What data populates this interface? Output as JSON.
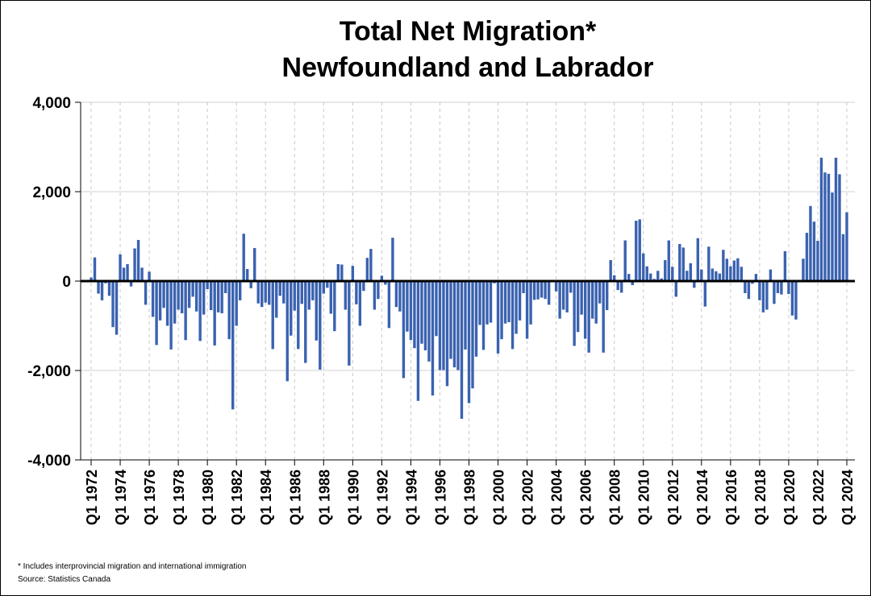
{
  "chart_data": {
    "type": "bar",
    "title": "Total Net Migration*",
    "subtitle": "Newfoundland and Labrador",
    "footnote": "* Includes interprovincial migration and international immigration",
    "source": "Source: Statistics Canada",
    "color": "#3a62b0",
    "grid": true,
    "ylim": [
      -4000,
      4000
    ],
    "yticks": [
      {
        "value": -4000,
        "label": "-4,000"
      },
      {
        "value": -2000,
        "label": "-2,000"
      },
      0,
      {
        "value": 2000,
        "label": "2,000"
      },
      {
        "value": 4000,
        "label": "4,000"
      }
    ],
    "categories": [
      "Q1 1972",
      null,
      null,
      null,
      null,
      null,
      null,
      null,
      "Q1 1974",
      null,
      null,
      null,
      null,
      null,
      null,
      null,
      "Q1 1976",
      null,
      null,
      null,
      null,
      null,
      null,
      null,
      "Q1 1978",
      null,
      null,
      null,
      null,
      null,
      null,
      null,
      "Q1 1980",
      null,
      null,
      null,
      null,
      null,
      null,
      null,
      "Q1 1982",
      null,
      null,
      null,
      null,
      null,
      null,
      null,
      "Q1 1984",
      null,
      null,
      null,
      null,
      null,
      null,
      null,
      "Q1 1986",
      null,
      null,
      null,
      null,
      null,
      null,
      null,
      "Q1 1988",
      null,
      null,
      null,
      null,
      null,
      null,
      null,
      "Q1 1990",
      null,
      null,
      null,
      null,
      null,
      null,
      null,
      "Q1 1992",
      null,
      null,
      null,
      null,
      null,
      null,
      null,
      "Q1 1994",
      null,
      null,
      null,
      null,
      null,
      null,
      null,
      "Q1 1996",
      null,
      null,
      null,
      null,
      null,
      null,
      null,
      "Q1 1998",
      null,
      null,
      null,
      null,
      null,
      null,
      null,
      "Q1 2000",
      null,
      null,
      null,
      null,
      null,
      null,
      null,
      "Q1 2002",
      null,
      null,
      null,
      null,
      null,
      null,
      null,
      "Q1 2004",
      null,
      null,
      null,
      null,
      null,
      null,
      null,
      "Q1 2006",
      null,
      null,
      null,
      null,
      null,
      null,
      null,
      "Q1 2008",
      null,
      null,
      null,
      null,
      null,
      null,
      null,
      "Q1 2010",
      null,
      null,
      null,
      null,
      null,
      null,
      null,
      "Q1 2012",
      null,
      null,
      null,
      null,
      null,
      null,
      null,
      "Q1 2014",
      null,
      null,
      null,
      null,
      null,
      null,
      null,
      "Q1 2016",
      null,
      null,
      null,
      null,
      null,
      null,
      null,
      "Q1 2018",
      null,
      null,
      null,
      null,
      null,
      null,
      null,
      "Q1 2020",
      null,
      null,
      null,
      null,
      null,
      null,
      null,
      "Q1 2022",
      null,
      null,
      null,
      null,
      null,
      null,
      null,
      "Q1 2024"
    ],
    "values": [
      80,
      530,
      -280,
      -430,
      -50,
      -330,
      -1030,
      -1200,
      600,
      300,
      380,
      -120,
      730,
      920,
      300,
      -530,
      210,
      -800,
      -1430,
      -880,
      -600,
      -1000,
      -1530,
      -950,
      -640,
      -720,
      -1320,
      -600,
      -350,
      -680,
      -1340,
      -750,
      -180,
      -650,
      -1440,
      -700,
      -720,
      -270,
      -1300,
      -2870,
      -1000,
      -430,
      1060,
      270,
      -160,
      740,
      -500,
      -580,
      -480,
      -530,
      -1520,
      -820,
      -330,
      -500,
      -2240,
      -1220,
      -660,
      -1520,
      -510,
      -1830,
      -640,
      -430,
      -1330,
      -1980,
      -280,
      -150,
      -730,
      -1120,
      380,
      370,
      -640,
      -1890,
      340,
      -520,
      -1000,
      -220,
      520,
      720,
      -640,
      -400,
      120,
      -80,
      -1050,
      970,
      -580,
      -680,
      -2170,
      -1130,
      -1320,
      -1500,
      -2680,
      -1400,
      -1550,
      -1800,
      -2560,
      -1230,
      -1990,
      -1990,
      -2350,
      -1740,
      -1930,
      -1990,
      -3080,
      -1530,
      -2730,
      -2400,
      -1690,
      -980,
      -1540,
      -970,
      -930,
      -50,
      -1620,
      -1300,
      -950,
      -920,
      -1520,
      -1180,
      -880,
      -270,
      -1290,
      -970,
      -420,
      -410,
      -370,
      -400,
      -530,
      -20,
      -230,
      -840,
      -640,
      -700,
      -260,
      -1450,
      -1140,
      -750,
      -1290,
      -1600,
      -840,
      -950,
      -500,
      -1600,
      -650,
      470,
      130,
      -200,
      -260,
      910,
      160,
      -90,
      1350,
      1380,
      620,
      330,
      170,
      50,
      230,
      60,
      470,
      910,
      320,
      -350,
      830,
      750,
      230,
      400,
      -150,
      960,
      260,
      -570,
      770,
      280,
      220,
      170,
      700,
      500,
      330,
      460,
      510,
      320,
      -270,
      -400,
      -60,
      160,
      -430,
      -700,
      -640,
      260,
      -510,
      -270,
      -300,
      670,
      -290,
      -770,
      -860,
      20,
      500,
      1080,
      1680,
      1330,
      900,
      2760,
      2430,
      2400,
      1980,
      2760,
      2390,
      1050,
      1540
    ]
  }
}
